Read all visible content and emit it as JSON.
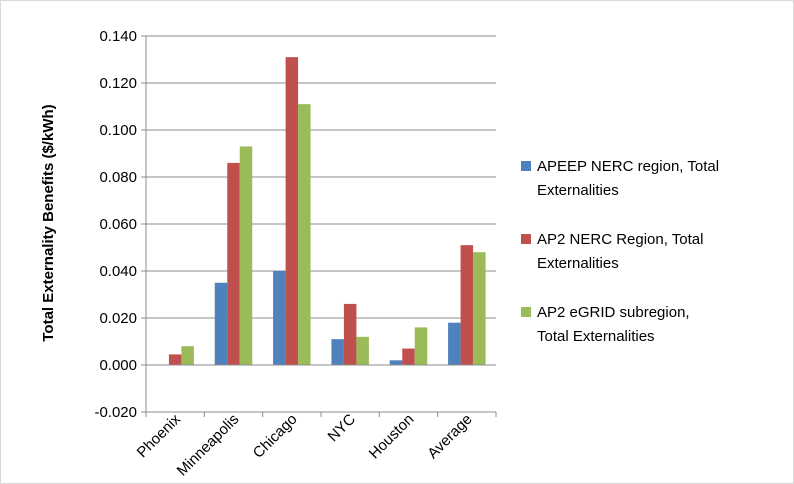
{
  "chart_data": {
    "type": "bar",
    "title": "",
    "xlabel": "",
    "ylabel": "Total Externality Benefits ($/kWh)",
    "ylim": [
      -0.02,
      0.14
    ],
    "ytick_step": 0.02,
    "ytick_labels": [
      "-0.020",
      "0.000",
      "0.020",
      "0.040",
      "0.060",
      "0.080",
      "0.100",
      "0.120",
      "0.140"
    ],
    "grid": true,
    "legend_position": "right",
    "categories": [
      "Phoenix",
      "Minneapolis",
      "Chicago",
      "NYC",
      "Houston",
      "Average"
    ],
    "series": [
      {
        "name": "APEEP NERC region, Total Externalities",
        "legend_lines": [
          "APEEP NERC region, Total",
          "Externalities"
        ],
        "color": "#4F81BD",
        "values": [
          0.0,
          0.035,
          0.04,
          0.011,
          0.002,
          0.018
        ]
      },
      {
        "name": "AP2 NERC Region,  Total Externalities",
        "legend_lines": [
          "AP2 NERC Region,  Total",
          "Externalities"
        ],
        "color": "#C0504D",
        "values": [
          0.0045,
          0.086,
          0.131,
          0.026,
          0.007,
          0.051
        ]
      },
      {
        "name": "AP2 eGRID subregion, Total Externalities",
        "legend_lines": [
          "AP2 eGRID subregion,",
          "Total Externalities"
        ],
        "color": "#9BBB59",
        "values": [
          0.008,
          0.093,
          0.111,
          0.012,
          0.016,
          0.048
        ]
      }
    ]
  }
}
